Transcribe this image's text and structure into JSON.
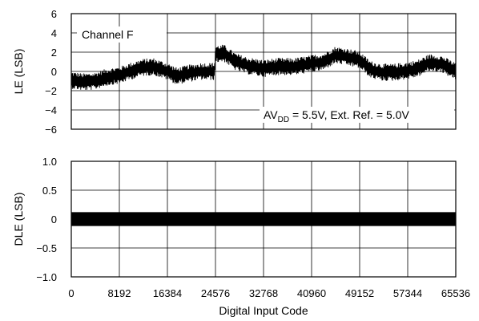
{
  "chart_data": [
    {
      "type": "line",
      "ylabel": "LE (LSB)",
      "ylim": [
        -6,
        6
      ],
      "yticks": [
        "6",
        "4",
        "2",
        "0",
        "−2",
        "−4",
        "−6"
      ],
      "ytick_values": [
        6,
        4,
        2,
        0,
        -2,
        -4,
        -6
      ],
      "xlim": [
        0,
        65536
      ],
      "legend_label": "Channel F",
      "legend_placement": "top-left",
      "annotation": {
        "prefix": "AV",
        "sub": "DD",
        "suffix": " = 5.5V, Ext. Ref. = 5.0V"
      },
      "grid": true,
      "trend": {
        "x": [
          0,
          2000,
          4000,
          6000,
          8192,
          10000,
          12000,
          14000,
          16384,
          18000,
          20000,
          22000,
          24400,
          24576,
          26000,
          28000,
          30000,
          32768,
          35000,
          38000,
          40960,
          43000,
          45000,
          47000,
          49152,
          51000,
          53000,
          55000,
          57344,
          59000,
          61000,
          63000,
          65535
        ],
        "y": [
          -0.9,
          -1.1,
          -1.0,
          -0.6,
          -0.4,
          0.0,
          0.4,
          0.5,
          0.0,
          -0.5,
          -0.2,
          0.0,
          0.0,
          1.8,
          1.9,
          1.0,
          0.6,
          0.3,
          0.5,
          0.5,
          0.8,
          1.0,
          1.7,
          1.5,
          1.2,
          0.2,
          -0.1,
          -0.1,
          0.1,
          0.3,
          0.9,
          0.8,
          0.0
        ],
        "noise_amplitude": 0.9
      }
    },
    {
      "type": "line",
      "xlabel": "Digital Input Code",
      "ylabel": "DLE (LSB)",
      "ylim": [
        -1.0,
        1.0
      ],
      "yticks": [
        "1.0",
        "0.5",
        "0",
        "−0.5",
        "−1.0"
      ],
      "ytick_values": [
        1.0,
        0.5,
        0,
        -0.5,
        -1.0
      ],
      "xlim": [
        0,
        65536
      ],
      "xticks": [
        "0",
        "8192",
        "16384",
        "24576",
        "32768",
        "40960",
        "49152",
        "57344",
        "65536"
      ],
      "xtick_values": [
        0,
        8192,
        16384,
        24576,
        32768,
        40960,
        49152,
        57344,
        65536
      ],
      "band": {
        "x_start": 0,
        "x_end": 65535,
        "min": -0.12,
        "max": 0.12
      },
      "grid": true
    }
  ]
}
